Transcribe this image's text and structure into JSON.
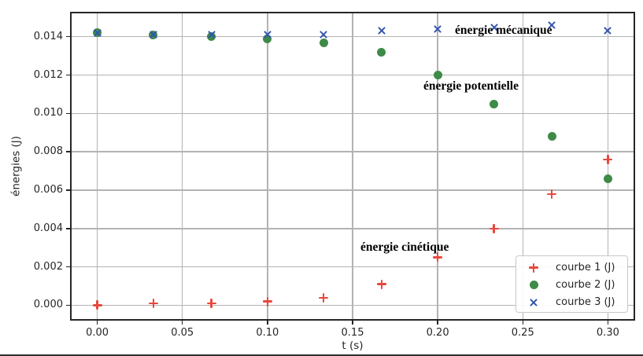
{
  "chart_data": {
    "type": "scatter",
    "xlabel": "t (s)",
    "ylabel": "énergies (J)",
    "grid": true,
    "xlim": [
      -0.016,
      0.316
    ],
    "ylim": [
      -0.0008,
      0.0153
    ],
    "x_ticks": {
      "values": [
        0.0,
        0.05,
        0.1,
        0.15,
        0.2,
        0.25,
        0.3
      ],
      "labels": [
        "0.00",
        "0.05",
        "0.10",
        "0.15",
        "0.20",
        "0.25",
        "0.30"
      ]
    },
    "y_ticks": {
      "values": [
        0.0,
        0.002,
        0.004,
        0.006,
        0.008,
        0.01,
        0.012,
        0.014
      ],
      "labels": [
        "0.000",
        "0.002",
        "0.004",
        "0.006",
        "0.008",
        "0.010",
        "0.012",
        "0.014"
      ]
    },
    "x": [
      0.0,
      0.033,
      0.067,
      0.1,
      0.133,
      0.167,
      0.2,
      0.233,
      0.267,
      0.3
    ],
    "series": [
      {
        "name": "courbe 1 (J)",
        "marker": "plus",
        "color": "#e8483d",
        "label_annotation": "énergie cinétique",
        "values": [
          0.0,
          0.0001,
          0.0001,
          0.0002,
          0.0004,
          0.0011,
          0.0025,
          0.004,
          0.0058,
          0.0076
        ]
      },
      {
        "name": "courbe 2 (J)",
        "marker": "circle",
        "color": "#3e8a47",
        "label_annotation": "énergie potentielle",
        "values": [
          0.0142,
          0.0141,
          0.014,
          0.0139,
          0.0137,
          0.0132,
          0.012,
          0.0105,
          0.0088,
          0.0066
        ]
      },
      {
        "name": "courbe 3 (J)",
        "marker": "cross",
        "color": "#3355b0",
        "label_annotation": "énergie mécanique",
        "values": [
          0.0142,
          0.0141,
          0.0141,
          0.0141,
          0.0141,
          0.0143,
          0.0144,
          0.0145,
          0.0146,
          0.0143
        ]
      }
    ],
    "annotations": [
      {
        "text": "énergie mécanique"
      },
      {
        "text": "énergie potentielle"
      },
      {
        "text": "énergie cinétique"
      }
    ],
    "legend": {
      "location": "lower right",
      "items": [
        {
          "label": "courbe 1 (J)",
          "marker": "plus",
          "color": "#e8483d"
        },
        {
          "label": "courbe 2 (J)",
          "marker": "circle",
          "color": "#3e8a47"
        },
        {
          "label": "courbe 3 (J)",
          "marker": "cross",
          "color": "#3355b0"
        }
      ]
    }
  }
}
